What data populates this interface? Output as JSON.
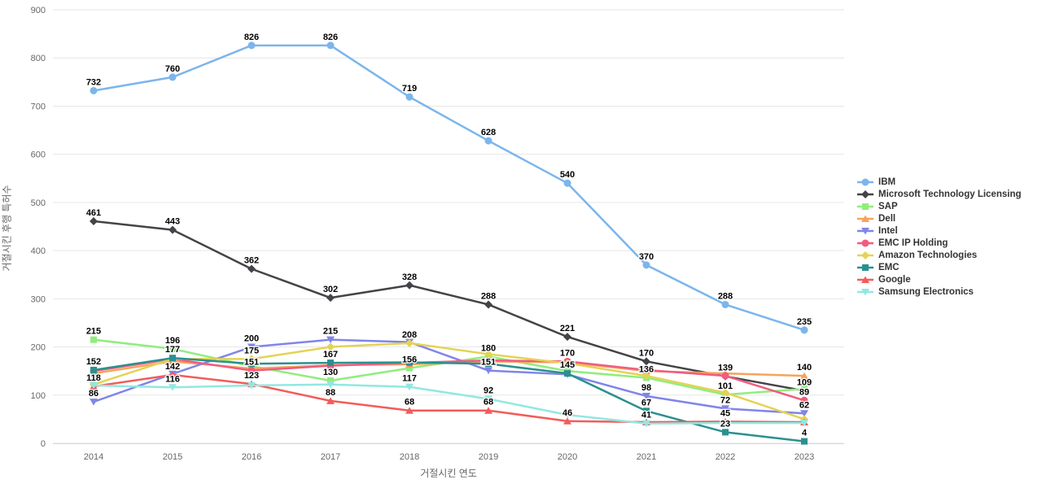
{
  "chart_data": {
    "type": "line",
    "title": "",
    "xlabel": "거절시킨 연도",
    "ylabel": "거절시킨 후행 특허수",
    "x": [
      2014,
      2015,
      2016,
      2017,
      2018,
      2019,
      2020,
      2021,
      2022,
      2023
    ],
    "ylim": [
      0,
      900
    ],
    "yticks": [
      0,
      100,
      200,
      300,
      400,
      500,
      600,
      700,
      800,
      900
    ],
    "grid": "horizontal",
    "legend_position": "right",
    "series": [
      {
        "name": "IBM",
        "color": "#7cb5ec",
        "marker": "circle",
        "values": [
          732,
          760,
          826,
          826,
          719,
          628,
          540,
          370,
          288,
          235
        ],
        "labels": [
          732,
          760,
          826,
          826,
          719,
          628,
          540,
          370,
          288,
          235
        ]
      },
      {
        "name": "Microsoft Technology Licensing",
        "color": "#434348",
        "marker": "diamond",
        "values": [
          461,
          443,
          362,
          302,
          328,
          288,
          221,
          170,
          139,
          109
        ],
        "labels": [
          461,
          443,
          362,
          302,
          328,
          288,
          221,
          170,
          139,
          109
        ]
      },
      {
        "name": "SAP",
        "color": "#90ed7d",
        "marker": "square",
        "values": [
          215,
          196,
          160,
          130,
          156,
          180,
          150,
          136,
          101,
          113
        ],
        "labels": [
          215,
          196,
          null,
          130,
          156,
          180,
          null,
          136,
          101,
          null
        ]
      },
      {
        "name": "Dell",
        "color": "#f7a35c",
        "marker": "triangle",
        "values": [
          145,
          170,
          155,
          162,
          164,
          170,
          168,
          150,
          145,
          140
        ],
        "labels": [
          null,
          null,
          null,
          null,
          null,
          null,
          null,
          null,
          null,
          140
        ]
      },
      {
        "name": "Intel",
        "color": "#8085e9",
        "marker": "triangle-down",
        "values": [
          86,
          144,
          200,
          215,
          210,
          151,
          143,
          98,
          72,
          62
        ],
        "labels": [
          86,
          null,
          200,
          215,
          null,
          151,
          null,
          98,
          72,
          62
        ]
      },
      {
        "name": "EMC IP Holding",
        "color": "#f15c80",
        "marker": "circle",
        "values": [
          150,
          175,
          151,
          161,
          167,
          172,
          170,
          152,
          140,
          89
        ],
        "labels": [
          null,
          null,
          151,
          null,
          null,
          null,
          170,
          null,
          null,
          89
        ]
      },
      {
        "name": "Amazon Technologies",
        "color": "#e4d354",
        "marker": "diamond",
        "values": [
          122,
          175,
          175,
          200,
          208,
          185,
          166,
          140,
          105,
          50
        ],
        "labels": [
          null,
          null,
          175,
          null,
          208,
          null,
          null,
          null,
          null,
          null
        ]
      },
      {
        "name": "EMC",
        "color": "#2b908f",
        "marker": "square",
        "values": [
          152,
          177,
          165,
          167,
          168,
          165,
          145,
          67,
          23,
          4
        ],
        "labels": [
          152,
          177,
          null,
          167,
          null,
          null,
          145,
          67,
          23,
          4
        ]
      },
      {
        "name": "Google",
        "color": "#f45b5b",
        "marker": "triangle",
        "values": [
          118,
          142,
          123,
          88,
          68,
          68,
          46,
          44,
          45,
          44
        ],
        "labels": [
          118,
          142,
          123,
          88,
          68,
          68,
          46,
          null,
          45,
          null
        ]
      },
      {
        "name": "Samsung Electronics",
        "color": "#91e8e1",
        "marker": "triangle-down",
        "values": [
          120,
          116,
          120,
          122,
          117,
          92,
          59,
          41,
          42,
          42
        ],
        "labels": [
          null,
          116,
          null,
          null,
          117,
          92,
          null,
          41,
          null,
          null
        ]
      }
    ]
  }
}
